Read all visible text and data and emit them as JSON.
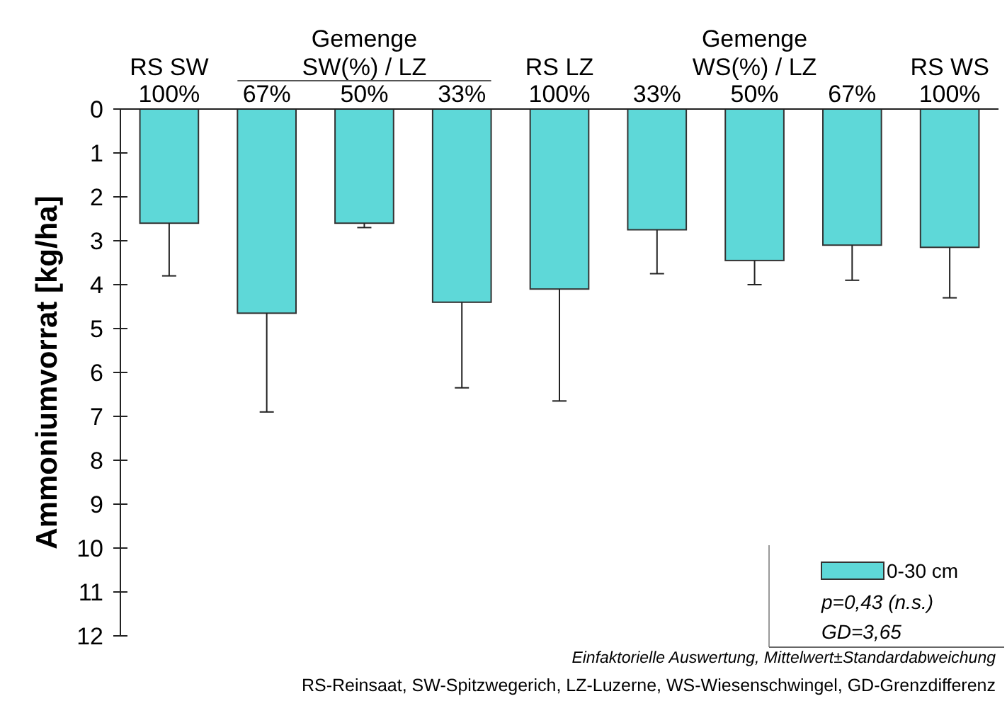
{
  "chart_data": {
    "type": "bar",
    "ylabel": "Ammoniumvorrat [kg/ha]",
    "categories": [
      "100%",
      "67%",
      "50%",
      "33%",
      "100%",
      "33%",
      "50%",
      "67%",
      "100%"
    ],
    "series": [
      {
        "name": "0-30 cm",
        "color": "#5ed8d8",
        "values": [
          2.6,
          4.65,
          2.6,
          4.4,
          4.1,
          2.75,
          3.45,
          3.1,
          3.15
        ],
        "errors": [
          1.2,
          2.25,
          0.1,
          1.95,
          2.55,
          1.0,
          0.55,
          0.8,
          1.15
        ]
      }
    ],
    "ylim": [
      12,
      0
    ],
    "yticks": [
      0,
      1,
      2,
      3,
      4,
      5,
      6,
      7,
      8,
      9,
      10,
      11,
      12
    ],
    "legend": "bottom right",
    "grid": false,
    "annotations": [
      "RS SW",
      "Gemenge\nSW(%) / LZ",
      "RS LZ",
      "Gemenge\nWS(%) / LZ",
      "RS WS",
      "p=0,43 (n.s.)",
      "GD=3,65",
      "Einfaktorielle Auswertung, Mittelwert±Standardabweichung",
      "RS-Reinsaat, SW-Spitzwegerich, LZ-Luzerne, WS-Wiesenschwingel, GD-Grenzdifferenz"
    ]
  }
}
